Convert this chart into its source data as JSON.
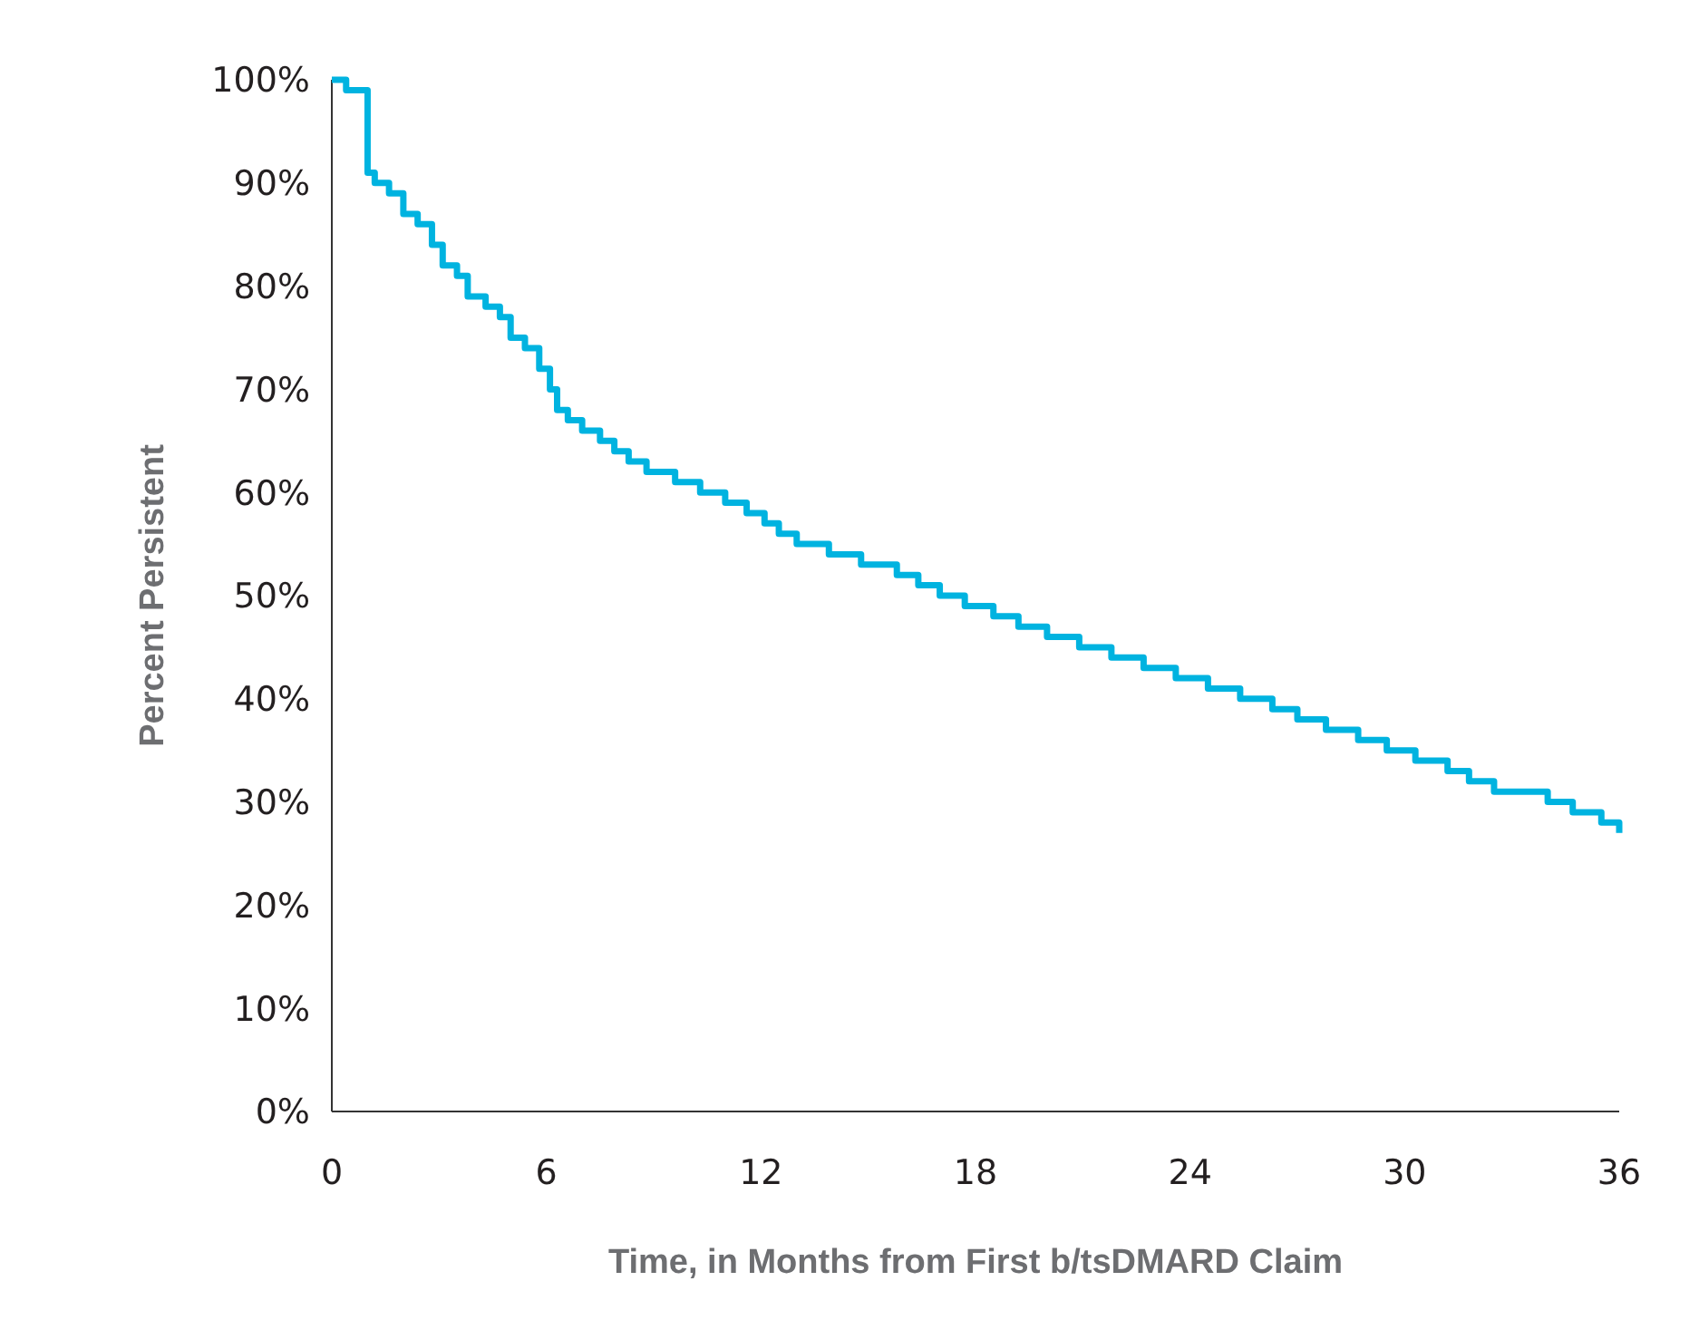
{
  "chart_data": {
    "type": "step",
    "xlabel": "Time, in Months from First b/tsDMARD Claim",
    "ylabel": "Percent Persistent",
    "x": [
      0,
      0.4,
      1.0,
      1.2,
      1.6,
      2.0,
      2.4,
      2.8,
      3.1,
      3.5,
      3.8,
      4.3,
      4.7,
      5.0,
      5.4,
      5.8,
      6.1,
      6.3,
      6.6,
      7.0,
      7.5,
      7.9,
      8.3,
      8.8,
      9.6,
      10.3,
      11.0,
      11.6,
      12.1,
      12.5,
      13.0,
      13.9,
      14.8,
      15.8,
      16.4,
      17.0,
      17.7,
      18.5,
      19.2,
      20.0,
      20.9,
      21.8,
      22.7,
      23.6,
      24.5,
      25.4,
      26.3,
      27.0,
      27.8,
      28.7,
      29.5,
      30.3,
      31.2,
      31.8,
      32.5,
      34.0,
      34.7,
      35.5,
      36
    ],
    "series": [
      {
        "color": "#00b3e0",
        "values": [
          100,
          99,
          91,
          90,
          89,
          87,
          86,
          84,
          82,
          81,
          79,
          78,
          77,
          75,
          74,
          72,
          70,
          68,
          67,
          66,
          65,
          64,
          63,
          62,
          61,
          60,
          59,
          58,
          57,
          56,
          55,
          54,
          53,
          52,
          51,
          50,
          49,
          48,
          47,
          46,
          45,
          44,
          43,
          42,
          41,
          40,
          39,
          38,
          37,
          36,
          35,
          34,
          33,
          32,
          31,
          30,
          29,
          28,
          27
        ]
      }
    ],
    "xlim": [
      0,
      36
    ],
    "xticks": [
      0,
      6,
      12,
      18,
      24,
      30,
      36
    ],
    "ylim": [
      0,
      100
    ],
    "yticks": [
      {
        "value": 0,
        "label": "0%"
      },
      {
        "value": 10,
        "label": "10%"
      },
      {
        "value": 20,
        "label": "20%"
      },
      {
        "value": 30,
        "label": "30%"
      },
      {
        "value": 40,
        "label": "40%"
      },
      {
        "value": 50,
        "label": "50%"
      },
      {
        "value": 60,
        "label": "60%"
      },
      {
        "value": 70,
        "label": "70%"
      },
      {
        "value": 80,
        "label": "80%"
      },
      {
        "value": 90,
        "label": "90%"
      },
      {
        "value": 100,
        "label": "100%"
      }
    ],
    "grid": false,
    "marker": "none",
    "line_style": "solid"
  }
}
